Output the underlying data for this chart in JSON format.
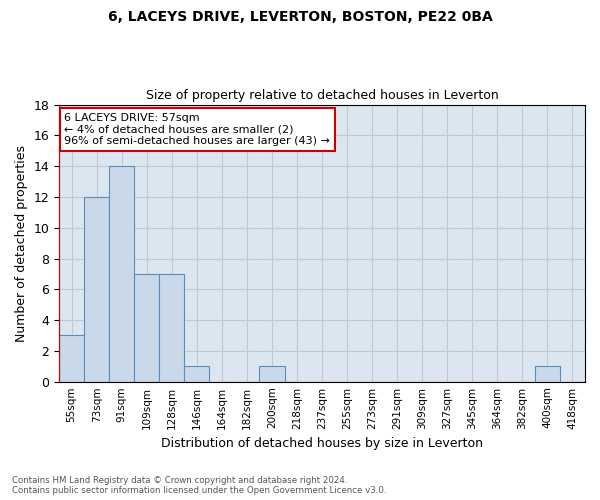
{
  "title1": "6, LACEYS DRIVE, LEVERTON, BOSTON, PE22 0BA",
  "title2": "Size of property relative to detached houses in Leverton",
  "xlabel": "Distribution of detached houses by size in Leverton",
  "ylabel": "Number of detached properties",
  "footnote1": "Contains HM Land Registry data © Crown copyright and database right 2024.",
  "footnote2": "Contains public sector information licensed under the Open Government Licence v3.0.",
  "bins": [
    "55sqm",
    "73sqm",
    "91sqm",
    "109sqm",
    "128sqm",
    "146sqm",
    "164sqm",
    "182sqm",
    "200sqm",
    "218sqm",
    "237sqm",
    "255sqm",
    "273sqm",
    "291sqm",
    "309sqm",
    "327sqm",
    "345sqm",
    "364sqm",
    "382sqm",
    "400sqm",
    "418sqm"
  ],
  "counts": [
    3,
    12,
    14,
    7,
    7,
    1,
    0,
    0,
    1,
    0,
    0,
    0,
    0,
    0,
    0,
    0,
    0,
    0,
    0,
    1,
    0
  ],
  "bar_color": "#c9d9ea",
  "bar_edge_color": "#5b8db8",
  "grid_color": "#c0c8d8",
  "background_color": "#dce6f0",
  "annotation_line1": "6 LACEYS DRIVE: 57sqm",
  "annotation_line2": "← 4% of detached houses are smaller (2)",
  "annotation_line3": "96% of semi-detached houses are larger (43) →",
  "annotation_box_color": "#ffffff",
  "annotation_box_edge": "#cc0000",
  "red_line_x": -0.5,
  "ylim": [
    0,
    18
  ],
  "yticks": [
    0,
    2,
    4,
    6,
    8,
    10,
    12,
    14,
    16,
    18
  ]
}
